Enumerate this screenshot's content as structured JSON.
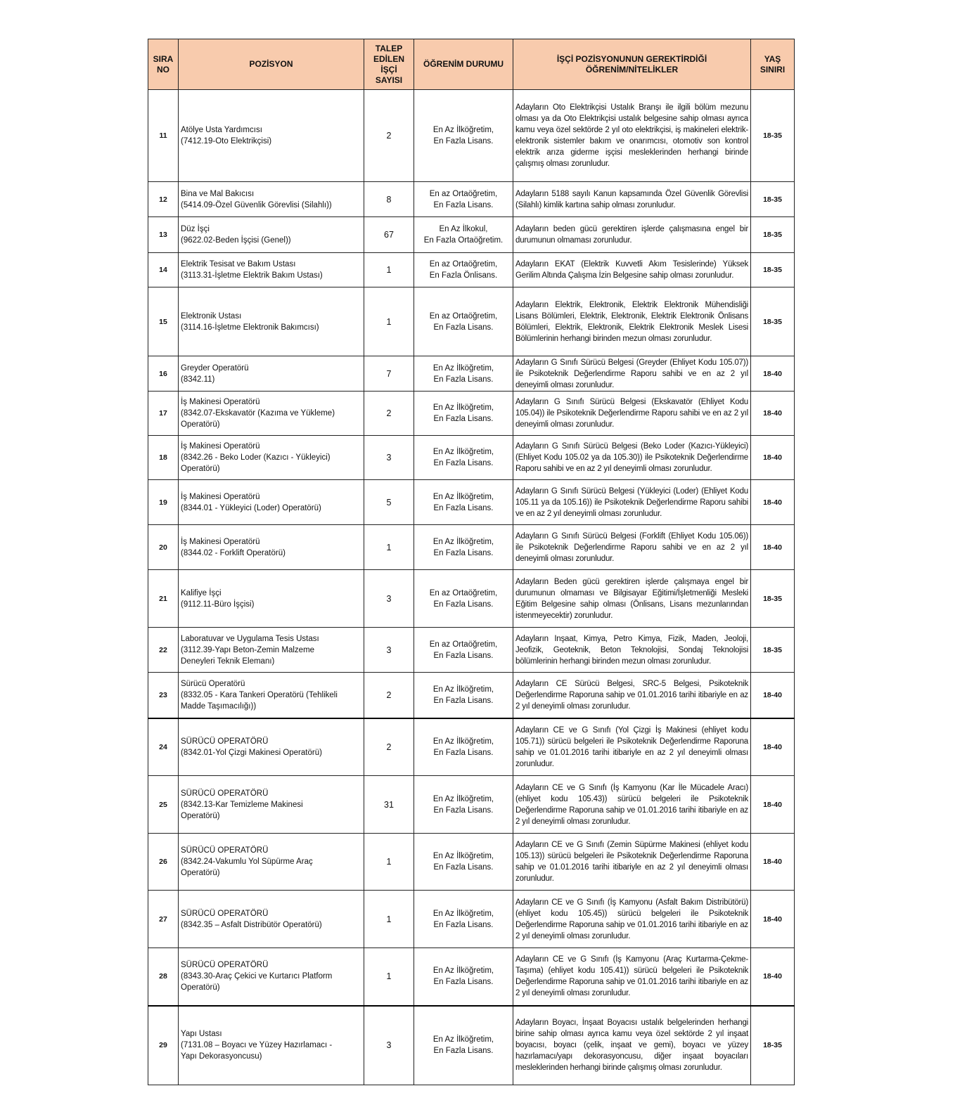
{
  "header": {
    "sira_no": "SIRA NO",
    "pozisyon": "POZİSYON",
    "talep": "TALEP EDİLEN İŞÇİ SAYISI",
    "ogrenim": "ÖĞRENİM DURUMU",
    "nitelikler": "İŞÇİ POZİSYONUNUN GEREKTİRDİĞİ ÖĞRENİM/NİTELİKLER",
    "yas": "YAŞ SINIRI"
  },
  "colors": {
    "header_bg": "#f8cbad",
    "border": "#222222"
  },
  "rows": [
    {
      "no": "11",
      "pos": [
        "Atölye Usta Yardımcısı",
        "(7412.19-Oto Elektrikçisi)"
      ],
      "count": "2",
      "edu": [
        "En Az İlköğretim,",
        "En Fazla Lisans."
      ],
      "desc": "Adayların Oto Elektrikçisi Ustalık Branşı ile ilgili bölüm mezunu olması ya da Oto Elektrikçisi ustalık belgesine sahip olması ayrıca kamu veya özel sektörde 2 yıl oto elektrikçisi, iş makineleri elektrik-elektronik sistemler bakım ve onarımcısı, otomotiv son kontrol elektrik arıza giderme işçisi mesleklerinden herhangi birinde çalışmış olması zorunludur.",
      "age": "18-35"
    },
    {
      "no": "12",
      "pos": [
        "Bina ve Mal Bakıcısı",
        "(5414.09-Özel Güvenlik Görevlisi (Silahlı))"
      ],
      "count": "8",
      "edu": [
        "En az Ortaöğretim,",
        "En Fazla Lisans."
      ],
      "desc": "Adayların 5188 sayılı Kanun kapsamında Özel Güvenlik Görevlisi (Silahlı) kimlik kartına sahip olması zorunludur.",
      "age": "18-35"
    },
    {
      "no": "13",
      "pos": [
        "Düz İşçi",
        "(9622.02-Beden İşçisi (Genel))"
      ],
      "count": "67",
      "edu": [
        "En Az İlkokul,",
        "En Fazla Ortaöğretim."
      ],
      "desc": "Adayların beden gücü gerektiren işlerde çalışmasına engel bir durumunun olmaması zorunludur.",
      "age": "18-35"
    },
    {
      "no": "14",
      "pos": [
        "Elektrik Tesisat ve Bakım Ustası",
        "(3113.31-İşletme Elektrik Bakım Ustası)"
      ],
      "count": "1",
      "edu": [
        "En az Ortaöğretim,",
        "En Fazla Önlisans."
      ],
      "desc": "Adayların EKAT (Elektrik Kuvvetli Akım Tesislerinde) Yüksek Gerilim Altında Çalışma İzin Belgesine sahip olması zorunludur.",
      "age": "18-35"
    },
    {
      "no": "15",
      "pos": [
        "Elektronik Ustası",
        "(3114.16-İşletme Elektronik Bakımcısı)"
      ],
      "count": "1",
      "edu": [
        "En az Ortaöğretim,",
        "En Fazla Lisans."
      ],
      "desc": "Adayların Elektrik, Elektronik, Elektrik Elektronik Mühendisliği Lisans Bölümleri, Elektrik, Elektronik, Elektrik Elektronik Önlisans Bölümleri, Elektrik, Elektronik, Elektrik Elektronik Meslek Lisesi Bölümlerinin herhangi birinden mezun olması zorunludur.",
      "age": "18-35"
    },
    {
      "no": "16",
      "pos": [
        "Greyder Operatörü",
        "(8342.11)"
      ],
      "count": "7",
      "edu": [
        "En Az İlköğretim,",
        "En Fazla Lisans."
      ],
      "desc": "Adayların G Sınıfı Sürücü Belgesi (Greyder (Ehliyet Kodu 105.07)) ile Psikoteknik Değerlendirme Raporu sahibi ve en az 2 yıl deneyimli olması zorunludur.",
      "age": "18-40"
    },
    {
      "no": "17",
      "pos": [
        "İş Makinesi Operatörü",
        "(8342.07-Ekskavatör (Kazıma ve Yükleme)",
        "Operatörü)"
      ],
      "count": "2",
      "edu": [
        "En Az İlköğretim,",
        "En Fazla Lisans."
      ],
      "desc": "Adayların G Sınıfı Sürücü Belgesi (Ekskavatör (Ehliyet Kodu 105.04)) ile Psikoteknik Değerlendirme Raporu sahibi ve en az 2 yıl deneyimli olması zorunludur.",
      "age": "18-40"
    },
    {
      "no": "18",
      "pos": [
        "İş Makinesi Operatörü",
        "(8342.26 - Beko Loder (Kazıcı - Yükleyici)",
        "Operatörü)"
      ],
      "count": "3",
      "edu": [
        "En Az İlköğretim,",
        "En Fazla Lisans."
      ],
      "desc": "Adayların G Sınıfı Sürücü Belgesi (Beko Loder (Kazıcı-Yükleyici) (Ehliyet Kodu 105.02 ya da 105.30)) ile Psikoteknik Değerlendirme Raporu sahibi ve en az 2 yıl deneyimli olması zorunludur.",
      "age": "18-40"
    },
    {
      "no": "19",
      "pos": [
        "İş Makinesi Operatörü",
        "(8344.01 - Yükleyici (Loder) Operatörü)"
      ],
      "count": "5",
      "edu": [
        "En Az İlköğretim,",
        "En Fazla Lisans."
      ],
      "desc": "Adayların G Sınıfı Sürücü Belgesi (Yükleyici (Loder) (Ehliyet Kodu 105.11 ya da 105.16)) ile Psikoteknik Değerlendirme Raporu sahibi ve en az 2 yıl deneyimli olması zorunludur.",
      "age": "18-40"
    },
    {
      "no": "20",
      "pos": [
        "İş Makinesi Operatörü",
        "(8344.02 - Forklift Operatörü)"
      ],
      "count": "1",
      "edu": [
        "En Az İlköğretim,",
        "En Fazla Lisans."
      ],
      "desc": "Adayların G Sınıfı Sürücü Belgesi (Forklift (Ehliyet Kodu 105.06)) ile Psikoteknik Değerlendirme Raporu sahibi ve en az 2 yıl deneyimli olması zorunludur.",
      "age": "18-40"
    },
    {
      "no": "21",
      "pos": [
        "Kalifiye İşçi",
        "(9112.11-Büro İşçisi)"
      ],
      "count": "3",
      "edu": [
        "En az Ortaöğretim,",
        "En Fazla Lisans."
      ],
      "desc": "Adayların Beden gücü gerektiren işlerde çalışmaya engel bir durumunun olmaması ve Bilgisayar Eğitimi/İşletmenliği Mesleki Eğitim Belgesine sahip olması (Önlisans, Lisans mezunlarından istenmeyecektir) zorunludur.",
      "age": "18-35"
    },
    {
      "no": "22",
      "pos": [
        "Laboratuvar ve Uygulama Tesis Ustası",
        "(3112.39-Yapı Beton-Zemin Malzeme",
        "Deneyleri Teknik Elemanı)"
      ],
      "count": "3",
      "edu": [
        "En az Ortaöğretim,",
        "En Fazla Lisans."
      ],
      "desc": "Adayların Inşaat, Kimya, Petro Kimya, Fizik, Maden, Jeoloji, Jeofizik, Geoteknik, Beton Teknolojisi, Sondaj Teknolojisi bölümlerinin herhangi birinden mezun olması zorunludur.",
      "age": "18-35"
    },
    {
      "no": "23",
      "pos": [
        "Sürücü Operatörü",
        "(8332.05 - Kara Tankeri Operatörü (Tehlikeli",
        "Madde Taşımacılığı))"
      ],
      "count": "2",
      "edu": [
        "En Az İlköğretim,",
        "En Fazla Lisans."
      ],
      "desc": "Adayların CE Sürücü Belgesi, SRC-5 Belgesi, Psikoteknik Değerlendirme Raporuna sahip ve 01.01.2016 tarihi itibariyle en az 2 yıl deneyimli olması zorunludur.",
      "age": "18-40"
    },
    {
      "no": "24",
      "pos": [
        "SÜRÜCÜ OPERATÖRÜ",
        "(8342.01-Yol Çizgi Makinesi Operatörü)"
      ],
      "count": "2",
      "edu": [
        "En Az İlköğretim,",
        "En Fazla Lisans."
      ],
      "desc": "Adayların CE ve G Sınıfı (Yol Çizgi İş Makinesi (ehliyet kodu 105.71)) sürücü belgeleri ile Psikoteknik Değerlendirme Raporuna sahip ve 01.01.2016 tarihi itibariyle en az 2 yıl deneyimli olması zorunludur.",
      "age": "18-40"
    },
    {
      "no": "25",
      "pos": [
        "SÜRÜCÜ OPERATÖRÜ",
        "(8342.13-Kar Temizleme Makinesi",
        "Operatörü)"
      ],
      "count": "31",
      "edu": [
        "En Az İlköğretim,",
        "En Fazla Lisans."
      ],
      "desc": "Adayların CE ve G Sınıfı (İş Kamyonu (Kar İle Mücadele Aracı) (ehliyet kodu 105.43)) sürücü belgeleri ile Psikoteknik Değerlendirme Raporuna sahip ve 01.01.2016 tarihi itibariyle en az 2 yıl deneyimli olması zorunludur.",
      "age": "18-40"
    },
    {
      "no": "26",
      "pos": [
        "SÜRÜCÜ OPERATÖRÜ",
        "(8342.24-Vakumlu Yol Süpürme Araç",
        "Operatörü)"
      ],
      "count": "1",
      "edu": [
        "En Az İlköğretim,",
        "En Fazla Lisans."
      ],
      "desc": "Adayların CE ve G Sınıfı (Zemin Süpürme Makinesi (ehliyet kodu 105.13)) sürücü belgeleri ile Psikoteknik Değerlendirme Raporuna sahip ve 01.01.2016 tarihi itibariyle en az 2 yıl deneyimli olması zorunludur.",
      "age": "18-40"
    },
    {
      "no": "27",
      "pos": [
        "SÜRÜCÜ OPERATÖRÜ",
        "(8342.35 – Asfalt Distribütör Operatörü)"
      ],
      "count": "1",
      "edu": [
        "En Az İlköğretim,",
        "En Fazla Lisans."
      ],
      "desc": "Adayların CE ve G Sınıfı (İş Kamyonu (Asfalt Bakım Distribütörü) (ehliyet kodu 105.45)) sürücü belgeleri ile Psikoteknik Değerlendirme Raporuna sahip ve 01.01.2016 tarihi itibariyle en az 2 yıl deneyimli olması zorunludur.",
      "age": "18-40"
    },
    {
      "no": "28",
      "pos": [
        "SÜRÜCÜ OPERATÖRÜ",
        "(8343.30-Araç Çekici ve Kurtarıcı Platform",
        "Operatörü)"
      ],
      "count": "1",
      "edu": [
        "En Az İlköğretim,",
        "En Fazla Lisans."
      ],
      "desc": "Adayların CE ve G Sınıfı (İş Kamyonu (Araç Kurtarma-Çekme-Taşıma) (ehliyet kodu 105.41)) sürücü belgeleri ile Psikoteknik Değerlendirme Raporuna sahip ve 01.01.2016 tarihi itibariyle en az 2 yıl deneyimli olması zorunludur.",
      "age": "18-40"
    },
    {
      "no": "29",
      "pos": [
        "Yapı Ustası",
        "(7131.08 – Boyacı ve Yüzey Hazırlamacı -",
        "Yapı Dekorasyoncusu)"
      ],
      "count": "3",
      "edu": [
        "En Az İlköğretim,",
        "En Fazla Lisans."
      ],
      "desc": "Adayların Boyacı, İnşaat Boyacısı ustalık belgelerinden herhangi birine sahip olması ayrıca kamu veya özel sektörde 2 yıl inşaat boyacısı, boyacı (çelik, inşaat ve gemi), boyacı ve yüzey hazırlamacı/yapı dekorasyoncusu, diğer inşaat boyacıları mesleklerinden herhangi birinde çalışmış olması zorunludur.",
      "age": "18-35"
    }
  ]
}
